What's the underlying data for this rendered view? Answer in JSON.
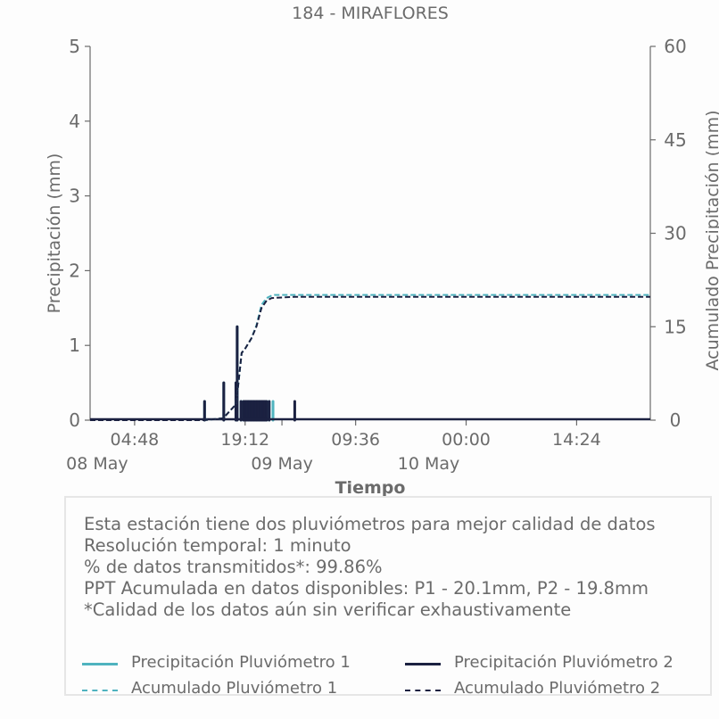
{
  "chart_data": {
    "type": "line",
    "title": "184 - MIRAFLORES",
    "xlabel": "Tiempo",
    "ylabel_left": "Precipitación (mm)",
    "ylabel_right": "Acumulado Precipitación (mm)",
    "ylim_left": [
      0,
      5
    ],
    "ylim_right": [
      0,
      60
    ],
    "yticks_left": [
      "0",
      "1",
      "2",
      "3",
      "4",
      "5"
    ],
    "yticks_right": [
      "0",
      "15",
      "30",
      "45",
      "60"
    ],
    "xlim": [
      "2024-05-07 23:00",
      "2024-05-11 00:00"
    ],
    "xticks": [
      {
        "time": "2024-05-08 04:48",
        "label": "04:48",
        "date": "08 May"
      },
      {
        "time": "2024-05-08 19:12",
        "label": "19:12",
        "date": ""
      },
      {
        "time": "2024-05-09 00:00",
        "label": "",
        "date": "09 May"
      },
      {
        "time": "2024-05-09 09:36",
        "label": "09:36",
        "date": ""
      },
      {
        "time": "2024-05-10 00:00",
        "label": "00:00",
        "date": "10 May"
      },
      {
        "time": "2024-05-10 14:24",
        "label": "14:24",
        "date": ""
      }
    ],
    "grid": false,
    "series": [
      {
        "name": "Precipitación Pluviómetro 1",
        "axis": "left",
        "style": "bar",
        "color": "#4fb3bf",
        "x": [
          "2024-05-08 13:55",
          "2024-05-08 16:25",
          "2024-05-08 18:00",
          "2024-05-08 18:10",
          "2024-05-08 18:40",
          "2024-05-08 19:00",
          "2024-05-08 19:20",
          "2024-05-08 19:40",
          "2024-05-08 20:00",
          "2024-05-08 20:20",
          "2024-05-08 20:40",
          "2024-05-08 21:00",
          "2024-05-08 21:20",
          "2024-05-08 21:40",
          "2024-05-08 22:00",
          "2024-05-08 22:20",
          "2024-05-08 22:50"
        ],
        "values": [
          0.25,
          0.5,
          0.5,
          1.25,
          0.25,
          0.25,
          0.25,
          0.25,
          0.25,
          0.25,
          0.25,
          0.25,
          0.25,
          0.25,
          0.25,
          0.25,
          0.25
        ]
      },
      {
        "name": "Precipitación Pluviómetro 2",
        "axis": "left",
        "style": "bar",
        "color": "#1b2141",
        "x": [
          "2024-05-08 13:55",
          "2024-05-08 16:25",
          "2024-05-08 18:00",
          "2024-05-08 18:10",
          "2024-05-08 18:40",
          "2024-05-08 19:00",
          "2024-05-08 19:10",
          "2024-05-08 19:20",
          "2024-05-08 19:30",
          "2024-05-08 19:40",
          "2024-05-08 19:50",
          "2024-05-08 20:00",
          "2024-05-08 20:10",
          "2024-05-08 20:20",
          "2024-05-08 20:30",
          "2024-05-08 20:40",
          "2024-05-08 20:50",
          "2024-05-08 21:00",
          "2024-05-08 21:10",
          "2024-05-08 21:20",
          "2024-05-08 21:30",
          "2024-05-08 21:40",
          "2024-05-08 21:50",
          "2024-05-08 22:00",
          "2024-05-08 22:20",
          "2024-05-09 01:40"
        ],
        "values": [
          0.25,
          0.5,
          0.5,
          1.25,
          0.25,
          0.25,
          0.25,
          0.25,
          0.25,
          0.25,
          0.25,
          0.25,
          0.25,
          0.25,
          0.25,
          0.25,
          0.25,
          0.25,
          0.25,
          0.25,
          0.25,
          0.25,
          0.25,
          0.25,
          0.25,
          0.25
        ]
      },
      {
        "name": "Acumulado Pluviómetro 1",
        "axis": "right",
        "style": "dashed",
        "color": "#4fb3bf",
        "x": [
          "2024-05-07 23:00",
          "2024-05-08 13:50",
          "2024-05-08 16:20",
          "2024-05-08 17:55",
          "2024-05-08 18:05",
          "2024-05-08 18:45",
          "2024-05-08 19:10",
          "2024-05-08 20:00",
          "2024-05-08 20:40",
          "2024-05-08 21:20",
          "2024-05-08 22:00",
          "2024-05-08 22:40",
          "2024-05-08 23:00",
          "2024-05-11 00:00"
        ],
        "values": [
          0,
          0,
          0.3,
          2.4,
          3.2,
          10.8,
          11.4,
          13.1,
          15.2,
          18.5,
          19.6,
          20.0,
          20.1,
          20.1
        ]
      },
      {
        "name": "Acumulado Pluviómetro 2",
        "axis": "right",
        "style": "dashed",
        "color": "#1b2141",
        "x": [
          "2024-05-07 23:00",
          "2024-05-08 13:50",
          "2024-05-08 16:20",
          "2024-05-08 17:55",
          "2024-05-08 18:05",
          "2024-05-08 18:45",
          "2024-05-08 19:10",
          "2024-05-08 20:00",
          "2024-05-08 20:40",
          "2024-05-08 21:20",
          "2024-05-08 22:00",
          "2024-05-08 22:40",
          "2024-05-09 01:40",
          "2024-05-11 00:00"
        ],
        "values": [
          0,
          0,
          0.3,
          2.4,
          3.2,
          10.8,
          11.4,
          13.1,
          15.0,
          18.0,
          19.2,
          19.6,
          19.8,
          19.8
        ]
      }
    ],
    "baseline_color": "#1b2141",
    "axis_color": "#6b6b6b"
  },
  "info": {
    "lines": [
      "Esta estación tiene dos pluviómetros para mejor calidad de datos",
      "Resolución temporal: 1 minuto",
      "% de datos transmitidos*: 99.86%",
      "PPT Acumulada en datos disponibles: P1 - 20.1mm, P2 - 19.8mm",
      "*Calidad de los datos aún sin verificar exhaustivamente"
    ]
  },
  "legend": {
    "items": [
      {
        "label": "Precipitación Pluviómetro 1",
        "color": "#4fb3bf",
        "style": "solid"
      },
      {
        "label": "Precipitación Pluviómetro 2",
        "color": "#1b2141",
        "style": "solid"
      },
      {
        "label": "Acumulado Pluviómetro 1",
        "color": "#4fb3bf",
        "style": "dashed"
      },
      {
        "label": "Acumulado Pluviómetro 2",
        "color": "#1b2141",
        "style": "dashed"
      }
    ]
  }
}
